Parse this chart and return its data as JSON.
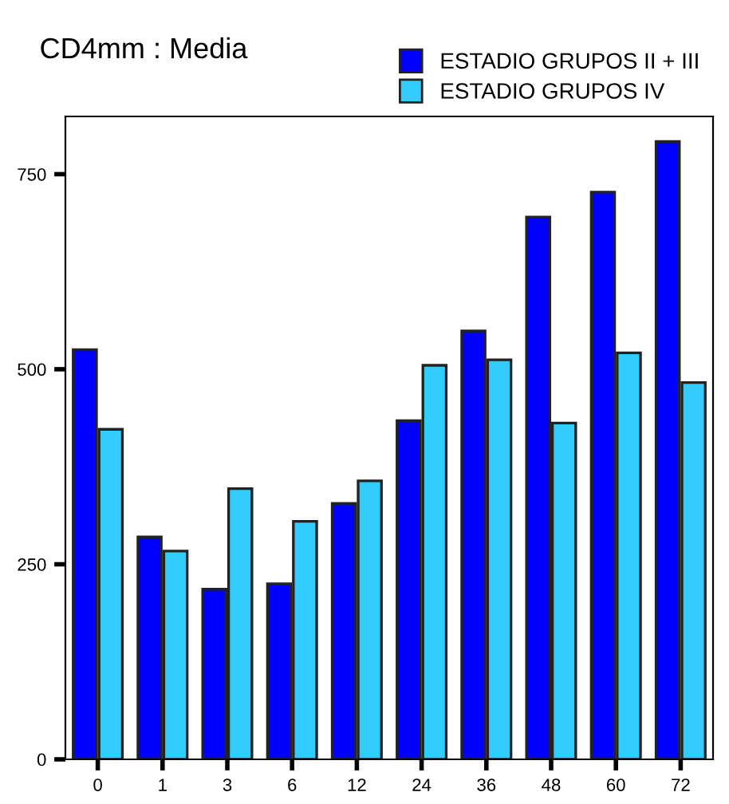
{
  "chart_data": {
    "type": "bar",
    "title": "CD4mm : Media",
    "categories": [
      "0",
      "1",
      "3",
      "6",
      "12",
      "24",
      "36",
      "48",
      "60",
      "72"
    ],
    "series": [
      {
        "name": "ESTADIO GRUPOS II + III",
        "color": "#0000ff",
        "values": [
          525,
          285,
          218,
          225,
          328,
          434,
          549,
          695,
          727,
          792
        ]
      },
      {
        "name": "ESTADIO GRUPOS IV",
        "color": "#33ccff",
        "values": [
          423,
          267,
          347,
          305,
          357,
          505,
          512,
          431,
          521,
          483
        ]
      }
    ],
    "ylim": [
      0,
      824
    ],
    "yticks": [
      0,
      250,
      500,
      750
    ],
    "grid": false,
    "legend": "top right"
  }
}
